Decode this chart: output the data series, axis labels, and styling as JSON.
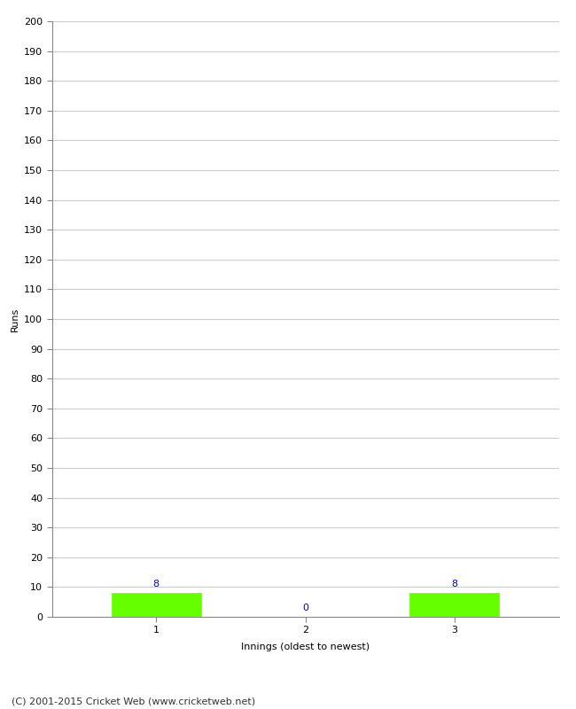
{
  "innings": [
    1,
    2,
    3
  ],
  "runs": [
    8,
    0,
    8
  ],
  "bar_color": "#66ff00",
  "bar_edge_color": "#66ff00",
  "ylabel": "Runs",
  "xlabel": "Innings (oldest to newest)",
  "ylim": [
    0,
    200
  ],
  "yticks": [
    0,
    10,
    20,
    30,
    40,
    50,
    60,
    70,
    80,
    90,
    100,
    110,
    120,
    130,
    140,
    150,
    160,
    170,
    180,
    190,
    200
  ],
  "xticks": [
    1,
    2,
    3
  ],
  "label_color": "#0000cc",
  "grid_color": "#cccccc",
  "background_color": "#ffffff",
  "footer_text": "(C) 2001-2015 Cricket Web (www.cricketweb.net)",
  "bar_width": 0.6,
  "spine_color": "#888888",
  "tick_color": "#888888",
  "tick_label_color": "#000000",
  "axis_label_color": "#000000",
  "footer_color": "#333333"
}
